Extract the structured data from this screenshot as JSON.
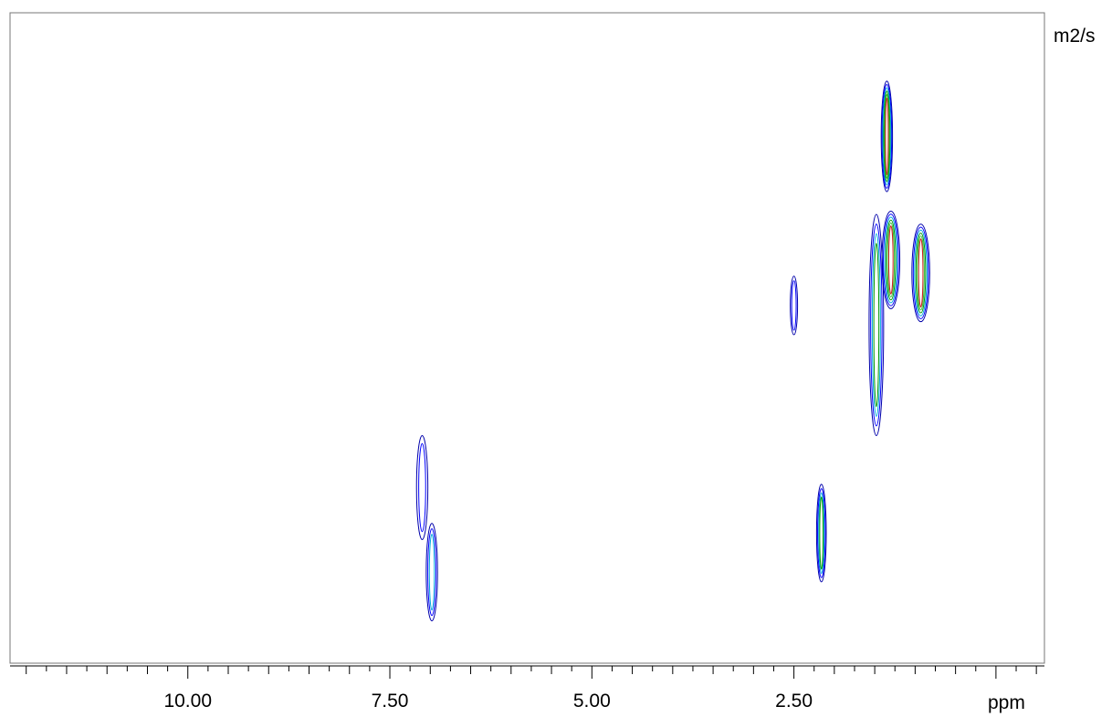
{
  "chart_data": {
    "type": "contour",
    "xlabel": "ppm",
    "ylabel": "m2/s",
    "xlim": [
      12.2,
      -0.6
    ],
    "x_ticks": [
      {
        "value": 10.0,
        "label": "10.00"
      },
      {
        "value": 7.5,
        "label": "7.50"
      },
      {
        "value": 5.0,
        "label": "5.00"
      },
      {
        "value": 2.5,
        "label": "2.50"
      }
    ],
    "level_colors": [
      "#0000aa",
      "#0000ff",
      "#00aadd",
      "#009900",
      "#33bb33",
      "#cc2222"
    ],
    "peaks": [
      {
        "x_ppm": 1.35,
        "y_rel": 0.19,
        "half_width_ppm": 0.07,
        "half_height_rel": 0.085,
        "levels": 6
      },
      {
        "x_ppm": 1.3,
        "y_rel": 0.38,
        "half_width_ppm": 0.11,
        "half_height_rel": 0.075,
        "levels": 6
      },
      {
        "x_ppm": 0.93,
        "y_rel": 0.4,
        "half_width_ppm": 0.11,
        "half_height_rel": 0.075,
        "levels": 6
      },
      {
        "x_ppm": 1.48,
        "y_rel": 0.48,
        "half_width_ppm": 0.09,
        "half_height_rel": 0.17,
        "levels": 4
      },
      {
        "x_ppm": 2.5,
        "y_rel": 0.45,
        "half_width_ppm": 0.045,
        "half_height_rel": 0.045,
        "levels": 2
      },
      {
        "x_ppm": 2.16,
        "y_rel": 0.8,
        "half_width_ppm": 0.06,
        "half_height_rel": 0.075,
        "levels": 4
      },
      {
        "x_ppm": 6.98,
        "y_rel": 0.86,
        "half_width_ppm": 0.07,
        "half_height_rel": 0.075,
        "levels": 3
      },
      {
        "x_ppm": 7.1,
        "y_rel": 0.73,
        "half_width_ppm": 0.07,
        "half_height_rel": 0.08,
        "levels": 2
      }
    ]
  }
}
